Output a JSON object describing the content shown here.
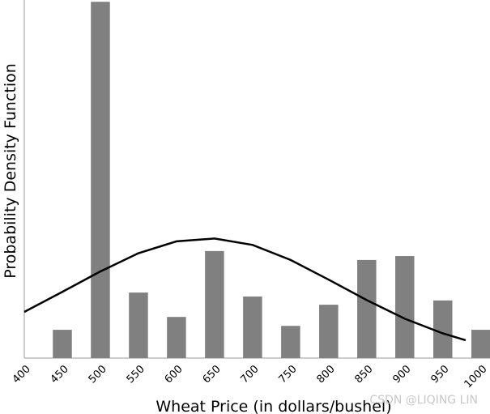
{
  "chart_data": {
    "type": "bar",
    "xlabel": "Wheat Price (in dollars/bushel)",
    "ylabel": "Probability Density Function",
    "annotation": "CSDN @LIQING LIN",
    "xlim": [
      400,
      1012
    ],
    "xticks": [
      400,
      450,
      500,
      550,
      600,
      650,
      700,
      750,
      800,
      850,
      900,
      950,
      1000
    ],
    "ylim": [
      0,
      100
    ],
    "series": [
      {
        "type": "bar",
        "color": "#808080",
        "x": [
          450,
          500,
          550,
          600,
          650,
          700,
          750,
          800,
          850,
          900,
          950,
          1000
        ],
        "values": [
          7.9,
          99.5,
          18.3,
          11.5,
          29.9,
          17.2,
          9.0,
          14.9,
          27.4,
          28.5,
          16.1,
          7.9
        ]
      },
      {
        "type": "line",
        "color": "#000000",
        "x": [
          400,
          450,
          500,
          550,
          600,
          650,
          700,
          750,
          800,
          850,
          900,
          950,
          980
        ],
        "values": [
          12.9,
          18.5,
          24.2,
          29.3,
          32.6,
          33.4,
          31.6,
          27.4,
          21.9,
          16.2,
          11.0,
          6.9,
          5.0
        ]
      }
    ]
  }
}
